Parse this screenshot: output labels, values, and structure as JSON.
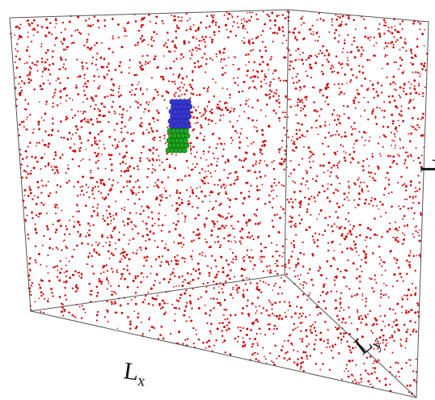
{
  "labels": {
    "x": {
      "main": "L",
      "sub": "x"
    },
    "y": {
      "main": "L",
      "sub": "y"
    },
    "z": {
      "main": "L"
    }
  }
}
